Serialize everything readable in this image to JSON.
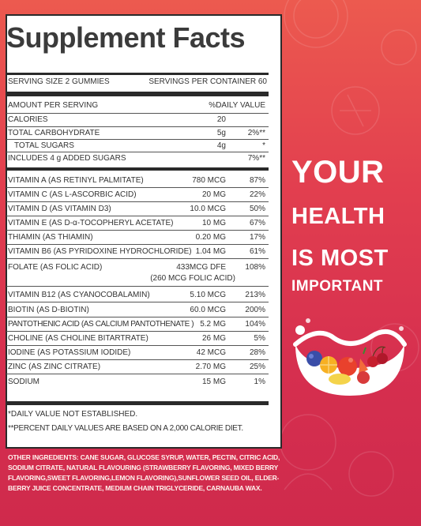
{
  "title": "Supplement Facts",
  "serving_size": "SERVING SIZE 2 GUMMIES",
  "servings_per_container": "SERVINGS PER CONTAINER 60",
  "amount_per_serving": "AMOUNT PER SERVING",
  "daily_value_header": "%DAILY  VALUE",
  "macros": [
    {
      "name": "CALORIES",
      "amount": "20",
      "dv": ""
    },
    {
      "name": "TOTAL CARBOHYDRATE",
      "amount": "5g",
      "dv": "2%**"
    },
    {
      "name": "TOTAL SUGARS",
      "amount": "4g",
      "dv": "*"
    },
    {
      "name": "INCLUDES 4 g ADDED SUGARS",
      "amount": "",
      "dv": "7%**"
    }
  ],
  "nutrients": [
    {
      "name": "VITAMIN A (AS RETINYL PALMITATE)",
      "amount": "780 MCG",
      "dv": "87%"
    },
    {
      "name": "VITAMIN C (AS L-ASCORBIC ACID)",
      "amount": "20 MG",
      "dv": "22%"
    },
    {
      "name": "VITAMIN D (AS VITAMIN D3)",
      "amount": "10.0 MCG",
      "dv": "50%"
    },
    {
      "name": "VITAMIN E (AS D-α-TOCOPHERYL ACETATE)",
      "amount": "10 MG",
      "dv": "67%"
    },
    {
      "name": "THIAMIN (AS THIAMIN)",
      "amount": "0.20 MG",
      "dv": "17%"
    },
    {
      "name": "VITAMIN B6 (AS PYRIDOXINE HYDROCHLORIDE)",
      "amount": "1.04 MG",
      "dv": "61%"
    },
    {
      "name": "FOLATE (AS FOLIC ACID)",
      "amount": "433MCG DFE",
      "sub": "(260 MCG FOLIC ACID)",
      "dv": "108%"
    },
    {
      "name": "VITAMIN B12 (AS CYANOCOBALAMIN)",
      "amount": "5.10 MCG",
      "dv": "213%"
    },
    {
      "name": "BIOTIN (AS D-BIOTIN)",
      "amount": "60.0 MCG",
      "dv": "200%"
    },
    {
      "name": "PANTOTHENIC ACID (AS CALCIUM PANTOTHENATE )",
      "amount": "5.2 MG",
      "dv": "104%"
    },
    {
      "name": "CHOLINE (AS CHOLINE BITARTRATE)",
      "amount": "26 MG",
      "dv": "5%"
    },
    {
      "name": "IODINE (AS POTASSIUM IODIDE)",
      "amount": "42 MCG",
      "dv": "28%"
    },
    {
      "name": "ZINC (AS ZINC CITRATE)",
      "amount": "2.70 MG",
      "dv": "25%"
    },
    {
      "name": "SODIUM",
      "amount": "15 MG",
      "dv": "1%"
    }
  ],
  "footnote_1": "*DAILY VALUE NOT ESTABLISHED.",
  "footnote_2": "**PERCENT DAILY VALUES ARE BASED ON A 2,000 CALORIE DIET.",
  "ingredients": "OTHER INGREDIENTS: CANE SUGAR, GLUCOSE SYRUP, WATER, PECTIN, CITRIC ACID, SODIUM CITRATE, NATURAL FLAVOURING (STRAWBERRY FLAVORING, MIXED BERRY FLAVORING,SWEET FLAVORING,LEMON FLAVORING),SUNFLOWER SEED OIL, ELDER-BERRY JUICE CONCENTRATE, MEDIUM CHAIN TRIGLYCERIDE, CARNAUBA WAX.",
  "slogan": {
    "line1": "YOUR",
    "line2": "HEALTH",
    "line3": "IS MOST",
    "line4": "IMPORTANT"
  },
  "colors": {
    "background_top": "#ec5a4f",
    "background_bottom": "#cf2a4c",
    "panel": "#ffffff",
    "text_dark": "#333333"
  },
  "illustration": "fruit-bowl-icon"
}
